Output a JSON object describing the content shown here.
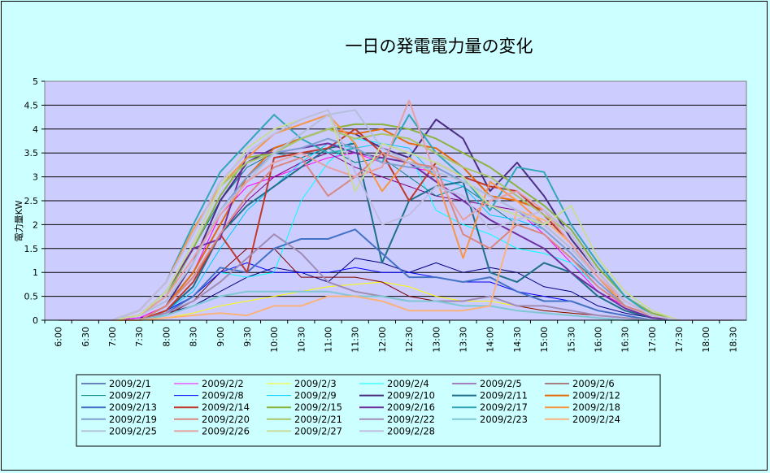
{
  "chart_data": {
    "type": "line",
    "title": "一日の発電電力量の変化",
    "ylabel": "電力量KW",
    "xlabel": "",
    "ylim": [
      0,
      5
    ],
    "yticks": [
      "0",
      "0.5",
      "1",
      "1.5",
      "2",
      "2.5",
      "3",
      "3.5",
      "4",
      "4.5",
      "5"
    ],
    "x": [
      "6:00",
      "6:30",
      "7:00",
      "7:30",
      "8:00",
      "8:30",
      "9:00",
      "9:30",
      "10:00",
      "10:30",
      "11:00",
      "11:30",
      "12:00",
      "12:30",
      "13:00",
      "13:30",
      "14:00",
      "14:30",
      "15:00",
      "15:30",
      "16:00",
      "16:30",
      "17:00",
      "17:30",
      "18:00",
      "18:30"
    ],
    "grid": "horizontal",
    "legend_position": "bottom",
    "series": [
      {
        "name": "2009/2/1",
        "color": "#000080",
        "width": 1,
        "values": [
          0,
          0,
          0,
          0.05,
          0.15,
          0.3,
          0.6,
          0.9,
          1.1,
          1.0,
          0.8,
          1.3,
          1.2,
          1.0,
          1.2,
          1.0,
          1.1,
          1.0,
          0.7,
          0.6,
          0.3,
          0.15,
          0.05,
          0,
          0,
          0
        ]
      },
      {
        "name": "2009/2/2",
        "color": "#ff00ff",
        "width": 1,
        "values": [
          0,
          0,
          0,
          0.05,
          0.3,
          1.0,
          2.2,
          2.8,
          3.0,
          3.2,
          3.4,
          3.5,
          3.3,
          3.2,
          3.1,
          2.9,
          2.6,
          2.3,
          1.8,
          1.2,
          0.6,
          0.3,
          0.1,
          0,
          0,
          0
        ]
      },
      {
        "name": "2009/2/3",
        "color": "#ffff00",
        "width": 1,
        "values": [
          0,
          0,
          0,
          0,
          0.05,
          0.15,
          0.3,
          0.4,
          0.5,
          0.6,
          0.7,
          0.75,
          0.8,
          0.7,
          0.5,
          0.4,
          0.4,
          0.3,
          0.2,
          0.15,
          0.1,
          0.05,
          0,
          0,
          0,
          0
        ]
      },
      {
        "name": "2009/2/4",
        "color": "#00ffff",
        "width": 1,
        "values": [
          0,
          0,
          0,
          0,
          0.1,
          0.4,
          1.0,
          0.9,
          1.0,
          2.5,
          3.3,
          3.8,
          3.7,
          3.5,
          2.3,
          2.0,
          1.8,
          1.5,
          1.4,
          1.2,
          0.7,
          0.3,
          0.1,
          0,
          0,
          0
        ]
      },
      {
        "name": "2009/2/5",
        "color": "#800080",
        "width": 1,
        "values": [
          0,
          0,
          0,
          0,
          0.2,
          0.8,
          1.8,
          2.5,
          3.0,
          3.3,
          3.5,
          3.2,
          3.0,
          2.8,
          2.6,
          2.5,
          2.4,
          2.3,
          2.0,
          1.5,
          0.9,
          0.4,
          0.1,
          0,
          0,
          0
        ]
      },
      {
        "name": "2009/2/6",
        "color": "#800000",
        "width": 1,
        "values": [
          0,
          0,
          0,
          0,
          0.1,
          0.4,
          1.0,
          1.5,
          1.5,
          0.9,
          0.9,
          0.9,
          0.8,
          0.5,
          0.4,
          0.4,
          0.5,
          0.3,
          0.2,
          0.15,
          0.1,
          0.05,
          0,
          0,
          0,
          0
        ]
      },
      {
        "name": "2009/2/7",
        "color": "#008080",
        "width": 1,
        "values": [
          0,
          0,
          0,
          0.1,
          0.5,
          1.5,
          2.5,
          3.2,
          3.5,
          3.4,
          3.6,
          3.3,
          3.4,
          3.0,
          2.6,
          2.8,
          2.4,
          2.0,
          1.8,
          1.3,
          0.8,
          0.3,
          0.1,
          0,
          0,
          0
        ]
      },
      {
        "name": "2009/2/8",
        "color": "#0000ff",
        "width": 1,
        "values": [
          0,
          0,
          0,
          0,
          0.2,
          0.5,
          1.0,
          1.2,
          1.0,
          1.0,
          1.0,
          1.1,
          1.0,
          1.0,
          0.9,
          0.8,
          0.8,
          0.6,
          0.5,
          0.4,
          0.2,
          0.1,
          0,
          0,
          0,
          0
        ]
      },
      {
        "name": "2009/2/9",
        "color": "#00ccff",
        "width": 1,
        "values": [
          0,
          0,
          0,
          0,
          0.2,
          0.6,
          1.5,
          2.3,
          2.8,
          3.3,
          3.7,
          3.6,
          3.7,
          3.6,
          3.0,
          2.8,
          2.2,
          2.1,
          1.9,
          1.4,
          0.8,
          0.3,
          0.1,
          0,
          0,
          0
        ]
      },
      {
        "name": "2009/2/10",
        "color": "#4b2e83",
        "width": 2,
        "values": [
          0,
          0,
          0,
          0,
          0.3,
          1.2,
          2.5,
          3.3,
          3.6,
          3.8,
          4.0,
          3.9,
          3.6,
          3.4,
          4.2,
          3.8,
          2.7,
          3.3,
          2.6,
          1.7,
          1.0,
          0.4,
          0.1,
          0,
          0,
          0
        ]
      },
      {
        "name": "2009/2/11",
        "color": "#1f6f8b",
        "width": 2,
        "values": [
          0,
          0,
          0,
          0,
          0.2,
          0.7,
          1.8,
          2.4,
          2.8,
          3.2,
          3.6,
          3.7,
          1.2,
          2.5,
          2.8,
          2.9,
          1.0,
          0.8,
          1.2,
          1.0,
          0.5,
          0.2,
          0.05,
          0,
          0,
          0
        ]
      },
      {
        "name": "2009/2/12",
        "color": "#e46c0a",
        "width": 2,
        "values": [
          0,
          0,
          0,
          0,
          0.3,
          1.0,
          2.0,
          3.0,
          3.6,
          3.8,
          4.0,
          3.9,
          4.0,
          3.7,
          3.6,
          3.2,
          2.6,
          2.5,
          2.3,
          1.8,
          1.0,
          0.4,
          0.1,
          0,
          0,
          0
        ]
      },
      {
        "name": "2009/2/13",
        "color": "#4472c4",
        "width": 2,
        "values": [
          0,
          0,
          0,
          0,
          0.15,
          0.5,
          1.1,
          1.0,
          1.5,
          1.7,
          1.7,
          1.9,
          1.4,
          0.9,
          0.9,
          0.8,
          0.9,
          0.6,
          0.4,
          0.4,
          0.2,
          0.1,
          0,
          0,
          0,
          0
        ]
      },
      {
        "name": "2009/2/14",
        "color": "#c0392b",
        "width": 2,
        "values": [
          0,
          0,
          0,
          0,
          0.2,
          0.8,
          1.8,
          1.0,
          3.4,
          3.5,
          3.6,
          4.0,
          3.5,
          2.5,
          3.3,
          3.0,
          2.8,
          2.7,
          2.2,
          1.6,
          0.9,
          0.3,
          0.1,
          0,
          0,
          0
        ]
      },
      {
        "name": "2009/2/15",
        "color": "#8ab33f",
        "width": 2,
        "values": [
          0,
          0,
          0,
          0.1,
          0.5,
          1.5,
          2.6,
          3.4,
          3.5,
          3.8,
          4.0,
          4.1,
          4.1,
          4.0,
          3.8,
          3.5,
          3.2,
          2.8,
          2.4,
          1.9,
          1.1,
          0.5,
          0.15,
          0,
          0,
          0
        ]
      },
      {
        "name": "2009/2/16",
        "color": "#7030a0",
        "width": 2,
        "values": [
          0,
          0,
          0,
          0.1,
          0.6,
          1.5,
          1.7,
          3.5,
          3.5,
          3.6,
          3.7,
          3.5,
          3.4,
          3.3,
          2.9,
          2.5,
          2.1,
          1.8,
          1.5,
          1.0,
          0.6,
          0.25,
          0.05,
          0,
          0,
          0
        ]
      },
      {
        "name": "2009/2/17",
        "color": "#31a7b7",
        "width": 2,
        "values": [
          0,
          0,
          0,
          0.2,
          0.8,
          2.0,
          3.1,
          3.7,
          4.3,
          3.8,
          3.5,
          3.6,
          3.3,
          4.3,
          3.5,
          3.0,
          2.3,
          3.2,
          3.1,
          2.0,
          1.2,
          0.5,
          0.1,
          0,
          0,
          0
        ]
      },
      {
        "name": "2009/2/18",
        "color": "#f79646",
        "width": 2,
        "values": [
          0,
          0,
          0,
          0.2,
          0.8,
          1.9,
          2.8,
          3.4,
          3.9,
          4.1,
          4.3,
          3.7,
          2.7,
          3.4,
          3.0,
          1.3,
          2.9,
          2.5,
          2.0,
          1.5,
          0.9,
          0.3,
          0.1,
          0,
          0,
          0
        ]
      },
      {
        "name": "2009/2/19",
        "color": "#7f9fcf",
        "width": 2,
        "values": [
          0,
          0,
          0,
          0.1,
          0.4,
          1.2,
          2.3,
          3.0,
          3.5,
          3.6,
          3.8,
          3.6,
          3.3,
          3.2,
          3.2,
          2.9,
          2.6,
          2.3,
          1.9,
          1.4,
          0.8,
          0.3,
          0.1,
          0,
          0,
          0
        ]
      },
      {
        "name": "2009/2/20",
        "color": "#d98880",
        "width": 2,
        "values": [
          0,
          0,
          0,
          0,
          0.3,
          0.9,
          1.8,
          2.6,
          3.2,
          3.4,
          2.6,
          3.0,
          3.5,
          3.3,
          3.2,
          1.8,
          1.5,
          2.0,
          1.8,
          1.3,
          0.7,
          0.3,
          0.1,
          0,
          0,
          0
        ]
      },
      {
        "name": "2009/2/21",
        "color": "#a9c56b",
        "width": 2,
        "values": [
          0,
          0,
          0,
          0.1,
          0.6,
          1.6,
          2.8,
          3.3,
          3.5,
          3.8,
          4.0,
          3.8,
          3.9,
          3.8,
          3.5,
          3.2,
          3.0,
          2.6,
          2.2,
          1.8,
          1.0,
          0.4,
          0.1,
          0,
          0,
          0
        ]
      },
      {
        "name": "2009/2/22",
        "color": "#a08cb4",
        "width": 2,
        "values": [
          0,
          0,
          0,
          0,
          0.15,
          0.4,
          0.8,
          1.3,
          1.8,
          1.4,
          0.8,
          0.6,
          0.5,
          0.4,
          0.4,
          0.4,
          0.5,
          0.3,
          0.3,
          0.2,
          0.1,
          0.05,
          0,
          0,
          0,
          0
        ]
      },
      {
        "name": "2009/2/23",
        "color": "#7ec8d3",
        "width": 2,
        "values": [
          0,
          0,
          0,
          0,
          0.1,
          0.3,
          0.5,
          0.6,
          0.6,
          0.6,
          0.6,
          0.5,
          0.5,
          0.4,
          0.4,
          0.3,
          0.3,
          0.2,
          0.15,
          0.1,
          0.05,
          0,
          0,
          0,
          0,
          0
        ]
      },
      {
        "name": "2009/2/24",
        "color": "#fab27b",
        "width": 2,
        "values": [
          0,
          0,
          0,
          0,
          0.05,
          0.1,
          0.15,
          0.1,
          0.3,
          0.3,
          0.5,
          0.5,
          0.4,
          0.2,
          0.2,
          0.2,
          0.3,
          2.3,
          2.1,
          1.6,
          0.9,
          0.4,
          0.1,
          0,
          0,
          0
        ]
      },
      {
        "name": "2009/2/25",
        "color": "#b4bfd9",
        "width": 2,
        "values": [
          0,
          0,
          0,
          0.1,
          0.4,
          1.2,
          2.3,
          2.9,
          3.5,
          3.9,
          4.3,
          4.4,
          3.6,
          3.3,
          3.1,
          2.9,
          2.6,
          2.3,
          2.0,
          1.5,
          0.9,
          0.4,
          0.1,
          0,
          0,
          0
        ]
      },
      {
        "name": "2009/2/26",
        "color": "#e6a0a0",
        "width": 2,
        "values": [
          0,
          0,
          0,
          0.1,
          0.5,
          1.3,
          2.2,
          2.9,
          3.3,
          3.5,
          3.2,
          3.0,
          3.2,
          4.6,
          3.0,
          2.1,
          2.5,
          2.7,
          2.3,
          1.6,
          0.9,
          0.4,
          0.1,
          0,
          0,
          0
        ]
      },
      {
        "name": "2009/2/27",
        "color": "#c8dc96",
        "width": 2,
        "values": [
          0,
          0,
          0,
          0.1,
          0.6,
          1.6,
          2.8,
          3.6,
          4.0,
          4.2,
          4.4,
          2.7,
          3.7,
          3.5,
          3.3,
          3.0,
          2.4,
          2.2,
          2.0,
          2.4,
          1.3,
          0.6,
          0.2,
          0,
          0,
          0
        ]
      },
      {
        "name": "2009/2/28",
        "color": "#c0bce0",
        "width": 2,
        "values": [
          0,
          0,
          0,
          0.2,
          0.8,
          1.8,
          2.9,
          3.5,
          3.9,
          4.2,
          4.4,
          3.1,
          2.0,
          2.2,
          2.8,
          2.6,
          1.9,
          2.1,
          2.3,
          1.8,
          1.0,
          0.4,
          0.1,
          0,
          0,
          0
        ]
      }
    ]
  }
}
